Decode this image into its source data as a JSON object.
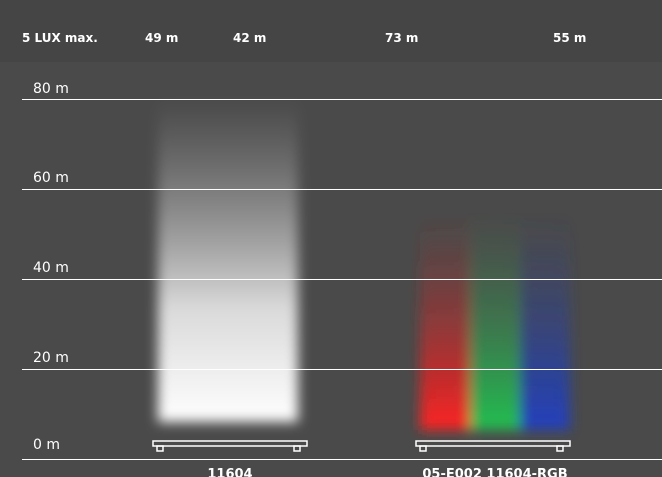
{
  "header": {
    "labels": [
      "5 LUX max.",
      "49 m",
      "42 m",
      "73 m",
      "55 m"
    ]
  },
  "axis": {
    "labels": [
      "80 m",
      "60 m",
      "40 m",
      "20 m",
      "0 m"
    ]
  },
  "products": [
    "11604",
    "05-E002 11604-RGB"
  ]
}
